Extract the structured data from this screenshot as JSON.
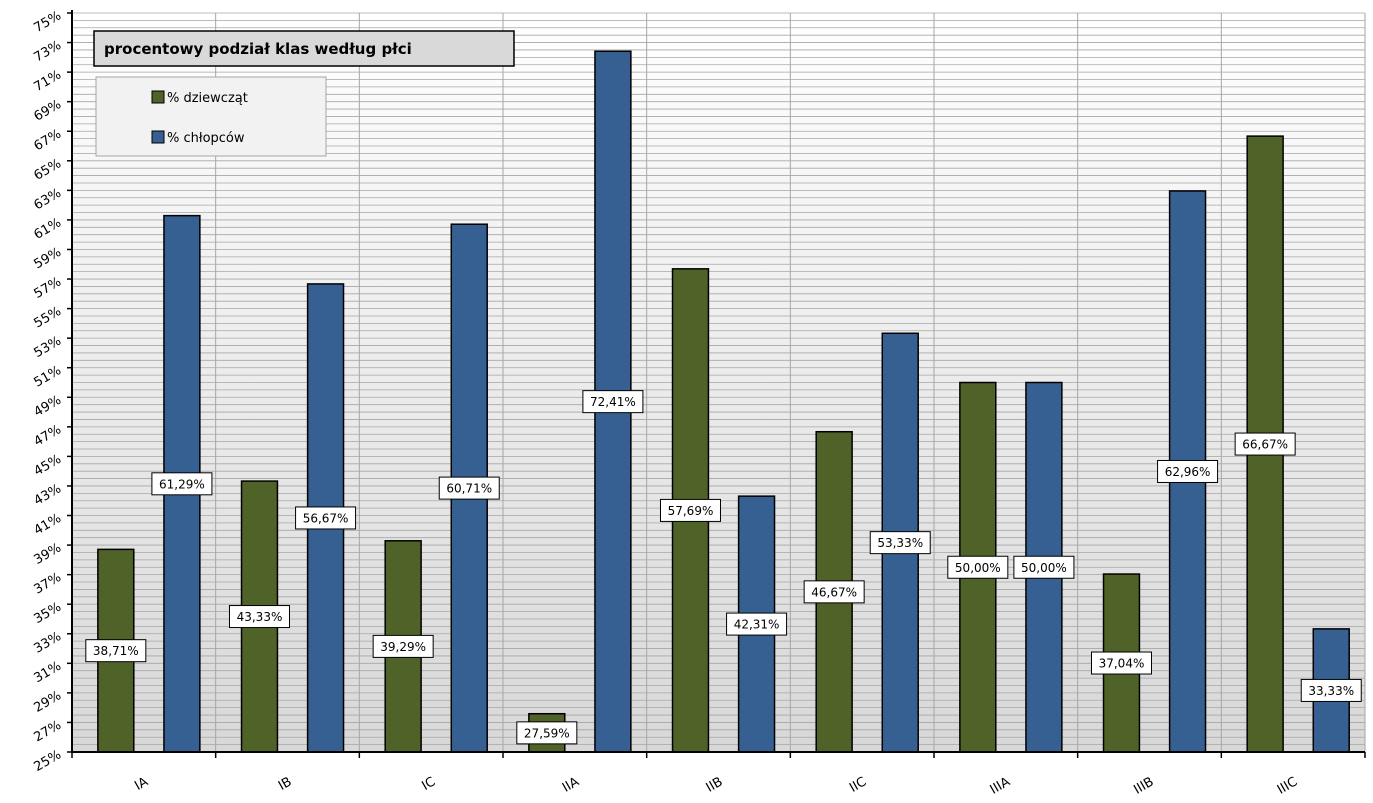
{
  "chart_data": {
    "type": "bar",
    "title": "procentowy podział klas według płci",
    "categories": [
      "IA",
      "IB",
      "IC",
      "IIA",
      "IIB",
      "IIC",
      "IIIA",
      "IIIB",
      "IIIC"
    ],
    "series": [
      {
        "name": "% dziewcząt",
        "color": "#4f6228",
        "values": [
          38.71,
          43.33,
          39.29,
          27.59,
          57.69,
          46.67,
          50.0,
          37.04,
          66.67
        ],
        "labels": [
          "38,71%",
          "43,33%",
          "39,29%",
          "27,59%",
          "57,69%",
          "46,67%",
          "50,00%",
          "37,04%",
          "66,67%"
        ]
      },
      {
        "name": "% chłopców",
        "color": "#376092",
        "values": [
          61.29,
          56.67,
          60.71,
          72.41,
          42.31,
          53.33,
          50.0,
          62.96,
          33.33
        ],
        "labels": [
          "61,29%",
          "56,67%",
          "60,71%",
          "72,41%",
          "42,31%",
          "53,33%",
          "50,00%",
          "62,96%",
          "33,33%"
        ]
      }
    ],
    "ylim": [
      25,
      75
    ],
    "ytick_step": 2,
    "ytick_labels": [
      "25%",
      "27%",
      "29%",
      "31%",
      "33%",
      "35%",
      "37%",
      "39%",
      "41%",
      "43%",
      "45%",
      "47%",
      "49%",
      "51%",
      "53%",
      "55%",
      "57%",
      "59%",
      "61%",
      "63%",
      "65%",
      "67%",
      "69%",
      "71%",
      "73%",
      "75%"
    ],
    "xlabel": "",
    "ylabel": "",
    "grid": true,
    "legend_position": "top-left",
    "colors": {
      "background_top": "#ffffff",
      "background_bottom": "#d8d8d8",
      "gridline": "#a6a6a6",
      "axis": "#000000"
    }
  }
}
